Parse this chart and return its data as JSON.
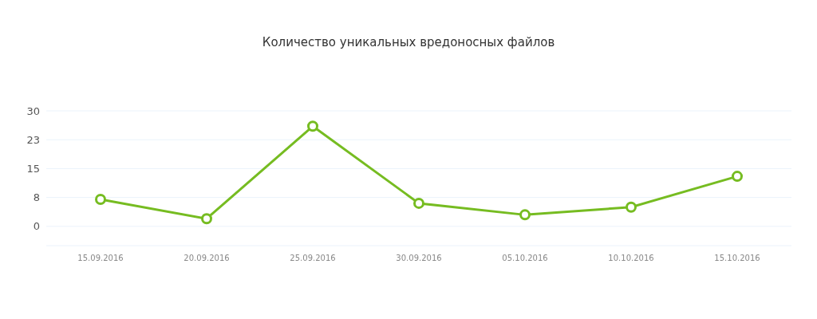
{
  "chart_data": {
    "type": "line",
    "title": "Количество уникальных вредоносных файлов",
    "categories": [
      "15.09.2016",
      "20.09.2016",
      "25.09.2016",
      "30.09.2016",
      "05.10.2016",
      "10.10.2016",
      "15.10.2016"
    ],
    "series": [
      {
        "color": "#76bc21",
        "values": [
          7,
          2,
          26,
          6,
          3,
          5,
          13
        ]
      }
    ],
    "ylim": [
      -5,
      30
    ],
    "yticks": [
      0,
      {
        "value": 7.5,
        "label": "8"
      },
      15,
      {
        "value": 22.5,
        "label": "23"
      },
      30
    ],
    "grid": "y",
    "marker": "circle",
    "line_style": "solid",
    "legend": false
  }
}
